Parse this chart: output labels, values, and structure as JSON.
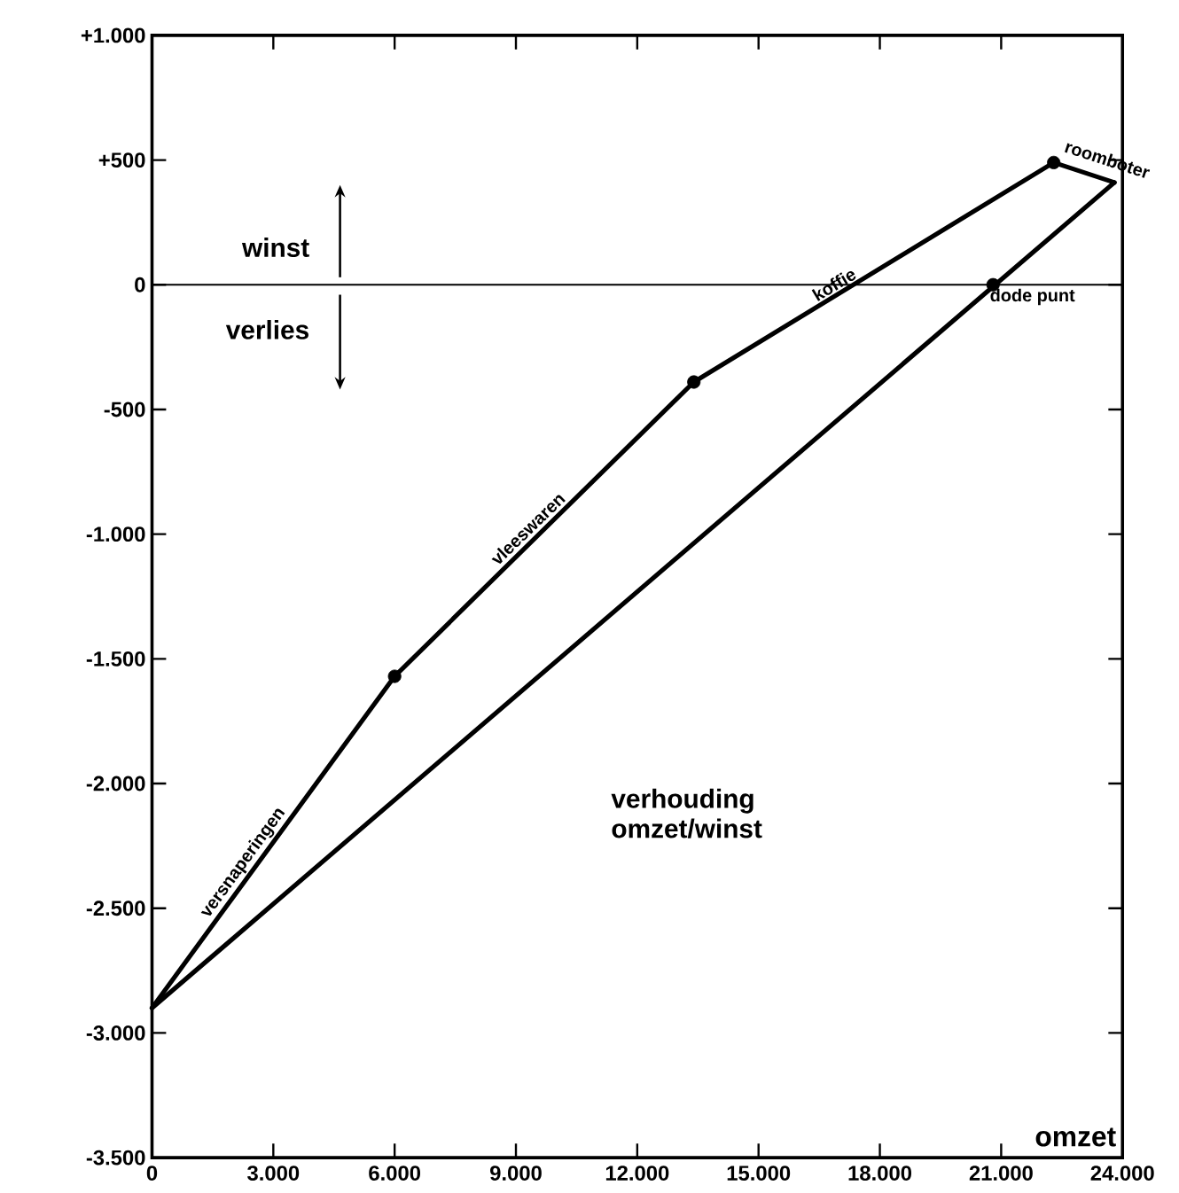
{
  "chart_data": {
    "type": "line",
    "xlabel": "omzet",
    "xlim": [
      0,
      24000
    ],
    "ylim": [
      -3500,
      1000
    ],
    "xticks": [
      0,
      {
        "value": 3000,
        "label": "3.000"
      },
      {
        "value": 6000,
        "label": "6.000"
      },
      {
        "value": 9000,
        "label": "9.000"
      },
      {
        "value": 12000,
        "label": "12.000"
      },
      {
        "value": 15000,
        "label": "15.000"
      },
      {
        "value": 18000,
        "label": "18.000"
      },
      {
        "value": 21000,
        "label": "21.000"
      },
      {
        "value": 24000,
        "label": "24.000"
      }
    ],
    "yticks": [
      {
        "value": 1000,
        "label": "+1.000"
      },
      {
        "value": 500,
        "label": "+500"
      },
      0,
      {
        "value": -500,
        "label": "-500"
      },
      {
        "value": -1000,
        "label": "-1.000"
      },
      {
        "value": -1500,
        "label": "-1.500"
      },
      {
        "value": -2000,
        "label": "-2.000"
      },
      {
        "value": -2500,
        "label": "-2.500"
      },
      {
        "value": -3000,
        "label": "-3.000"
      },
      {
        "value": -3500,
        "label": "-3.500"
      }
    ],
    "series": [
      {
        "x": [
          0,
          6000,
          13400,
          22300,
          23800
        ],
        "values": [
          -2900,
          -1570,
          -390,
          490,
          410
        ],
        "color": "#000000"
      },
      {
        "x": [
          0,
          23800
        ],
        "values": [
          -2900,
          410
        ],
        "color": "#000000"
      },
      {
        "type": "scatter",
        "x": [
          6000,
          13400,
          22300,
          20800
        ],
        "values": [
          -1570,
          -390,
          490,
          0
        ],
        "color": "#000000",
        "marker": "circle"
      }
    ],
    "ref_lines": [
      {
        "axis": "y",
        "value": 0,
        "color": "#000000"
      }
    ],
    "annotations": [
      "winst",
      "verlies",
      "verhouding omzet/winst",
      {
        "text": "versnaperingen",
        "x": 2500,
        "y": -2346
      },
      {
        "text": "vleeswaren",
        "x": 9500,
        "y": -1012
      },
      {
        "text": "koffie",
        "x": 17000,
        "y": -34
      },
      {
        "text": "roomboter",
        "x": 23000,
        "y": 470
      },
      {
        "text": "dode punt",
        "x": 20800,
        "y": 0
      }
    ]
  }
}
